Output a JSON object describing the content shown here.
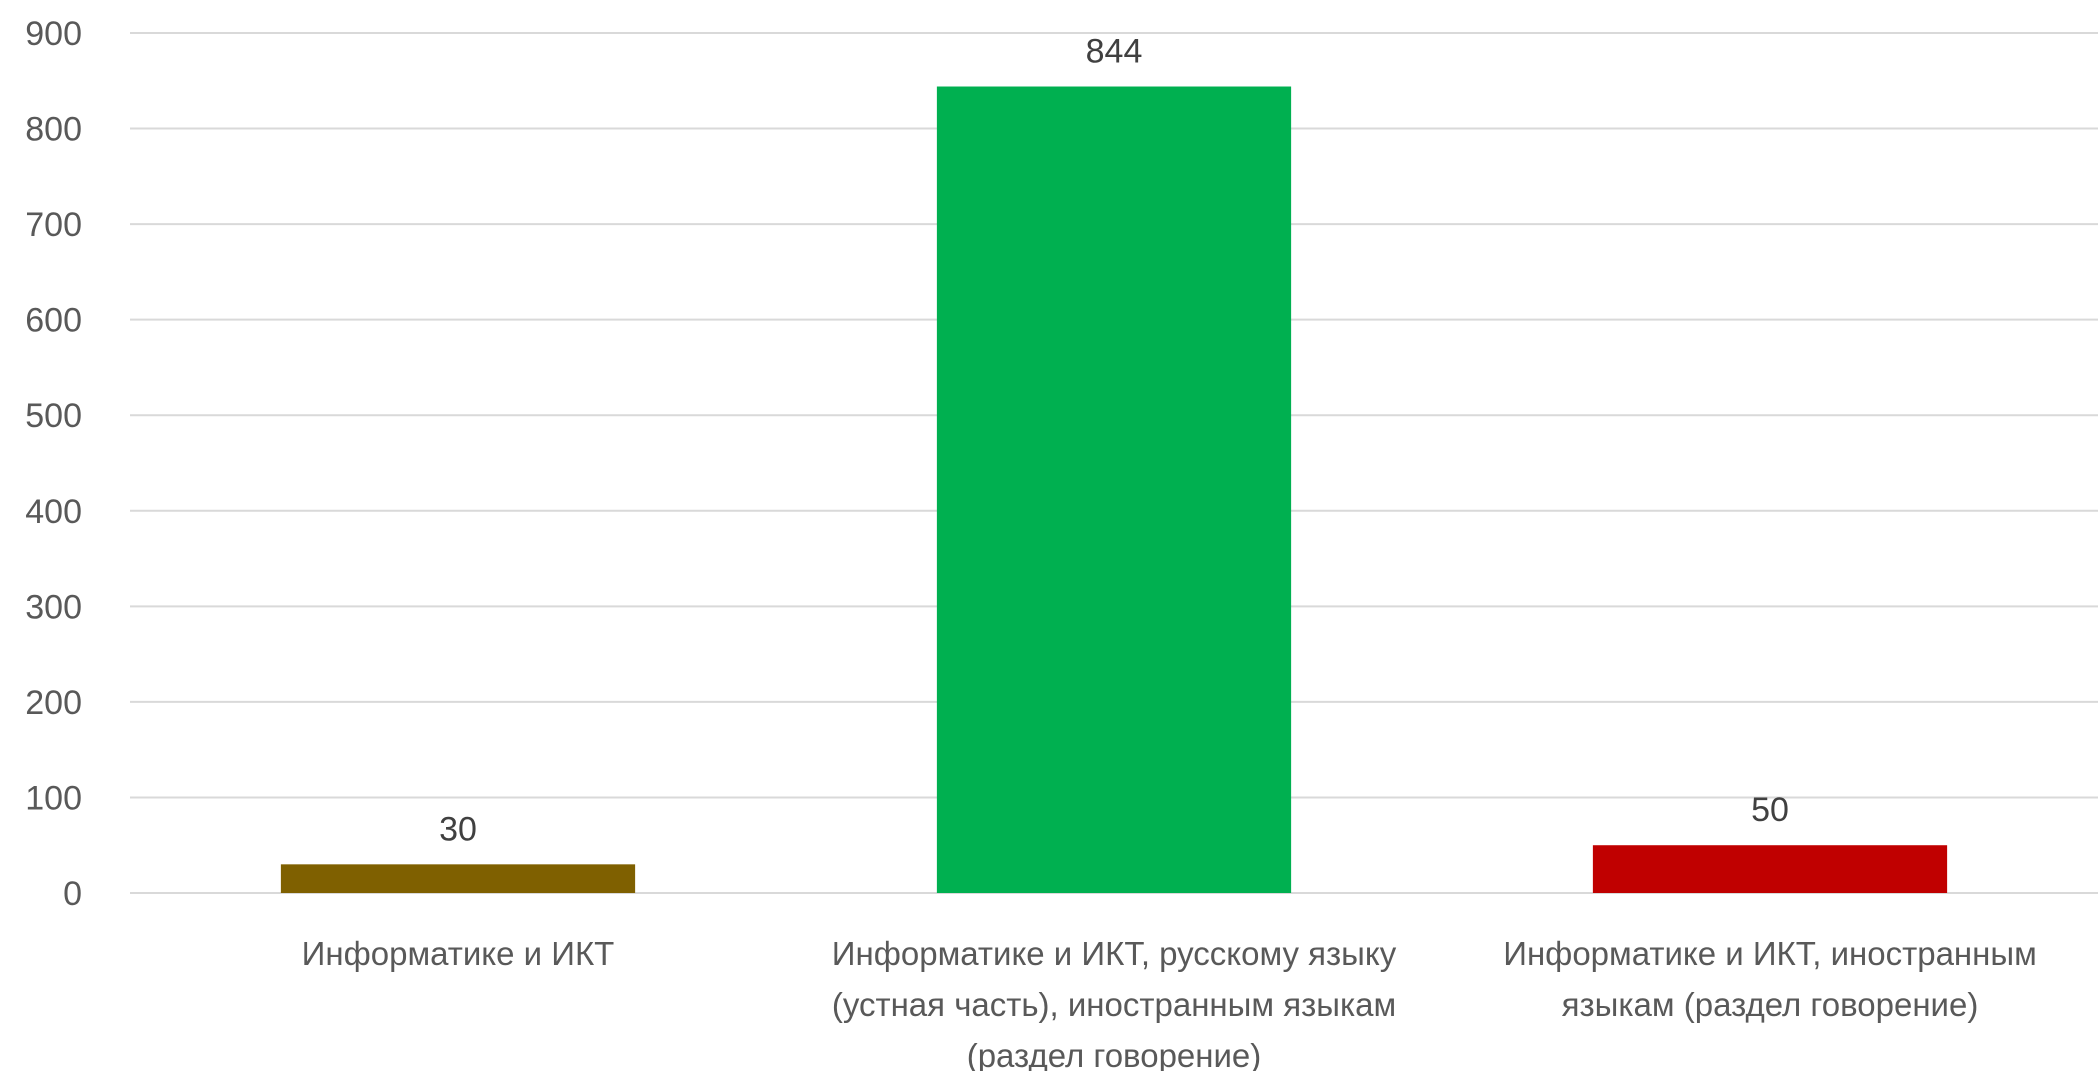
{
  "chart_data": {
    "type": "bar",
    "title": "",
    "xlabel": "",
    "ylabel": "",
    "ylim": [
      0,
      900
    ],
    "yticks": [
      0,
      100,
      200,
      300,
      400,
      500,
      600,
      700,
      800,
      900
    ],
    "grid": true,
    "legend": "none",
    "categories": [
      [
        "Информатике и ИКТ"
      ],
      [
        "Информатике и ИКТ, русскому языку",
        "(устная часть), иностранным языкам",
        "(раздел говорение)"
      ],
      [
        "Информатике и ИКТ, иностранным",
        "языкам (раздел говорение)"
      ]
    ],
    "values": [
      30,
      844,
      50
    ],
    "data_labels": [
      "30",
      "844",
      "50"
    ],
    "colors": [
      "#7f6000",
      "#00b050",
      "#c00000"
    ]
  }
}
